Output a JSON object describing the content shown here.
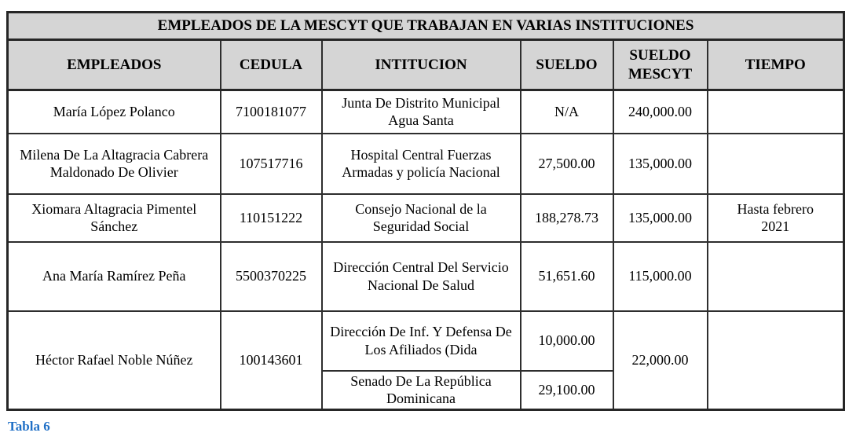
{
  "table": {
    "title": "EMPLEADOS DE LA MESCYT QUE TRABAJAN EN VARIAS INSTITUCIONES",
    "columns": [
      "EMPLEADOS",
      "CEDULA",
      "INTITUCION",
      "SUELDO",
      "SUELDO MESCYT",
      "TIEMPO"
    ],
    "rows": [
      {
        "empleado": "María López Polanco",
        "cedula": "7100181077",
        "instituciones": [
          {
            "institucion": "Junta De Distrito Municipal Agua Santa",
            "sueldo": "N/A"
          }
        ],
        "sueldo_mescyt": "240,000.00",
        "tiempo": ""
      },
      {
        "empleado": "Milena De La Altagracia Cabrera Maldonado De Olivier",
        "cedula": "107517716",
        "instituciones": [
          {
            "institucion": "Hospital Central Fuerzas Armadas y policía Nacional",
            "sueldo": "27,500.00"
          }
        ],
        "sueldo_mescyt": "135,000.00",
        "tiempo": ""
      },
      {
        "empleado": "Xiomara Altagracia Pimentel Sánchez",
        "cedula": "110151222",
        "instituciones": [
          {
            "institucion": "Consejo Nacional de la Seguridad Social",
            "sueldo": "188,278.73"
          }
        ],
        "sueldo_mescyt": "135,000.00",
        "tiempo": "Hasta febrero 2021"
      },
      {
        "empleado": "Ana María Ramírez Peña",
        "cedula": "5500370225",
        "instituciones": [
          {
            "institucion": "Dirección Central Del Servicio Nacional De Salud",
            "sueldo": "51,651.60"
          }
        ],
        "sueldo_mescyt": "115,000.00",
        "tiempo": ""
      },
      {
        "empleado": "Héctor Rafael Noble Núñez",
        "cedula": "100143601",
        "instituciones": [
          {
            "institucion": "Dirección De Inf. Y Defensa De Los Afiliados (Dida",
            "sueldo": "10,000.00"
          },
          {
            "institucion": "Senado De La República Dominicana",
            "sueldo": "29,100.00"
          }
        ],
        "sueldo_mescyt": "22,000.00",
        "tiempo": ""
      }
    ]
  },
  "caption": "Tabla 6",
  "colors": {
    "header_background": "#d5d5d5",
    "border": "#2e2e2e",
    "caption_text": "#1f6fc6",
    "body_text": "#000000"
  }
}
